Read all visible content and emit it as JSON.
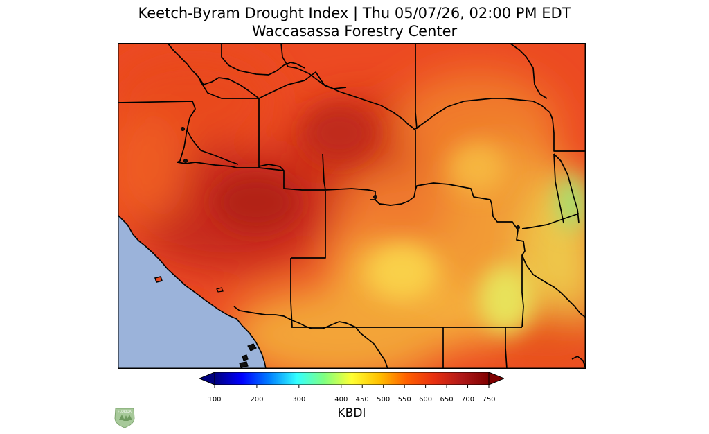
{
  "title": {
    "line1": "Keetch-Byram Drought Index | Thu 05/07/26, 02:00 PM EDT",
    "line2": "Waccasassa Forestry Center"
  },
  "colorbar": {
    "label": "KBDI",
    "ticks": [
      100,
      200,
      300,
      400,
      450,
      500,
      550,
      600,
      650,
      700,
      750
    ],
    "min": 100,
    "max": 750,
    "extend": "both",
    "colors": [
      "#00007f",
      "#0000ff",
      "#0080ff",
      "#33ffff",
      "#80ff80",
      "#ffff33",
      "#ffc000",
      "#ff6000",
      "#e83010",
      "#b01818",
      "#7f0000"
    ]
  },
  "map": {
    "water_color": "#99b3d9",
    "border_color": "#000000"
  },
  "logo": {
    "icon": "florida-forest-service-badge-icon",
    "text": "FLORIDA"
  }
}
